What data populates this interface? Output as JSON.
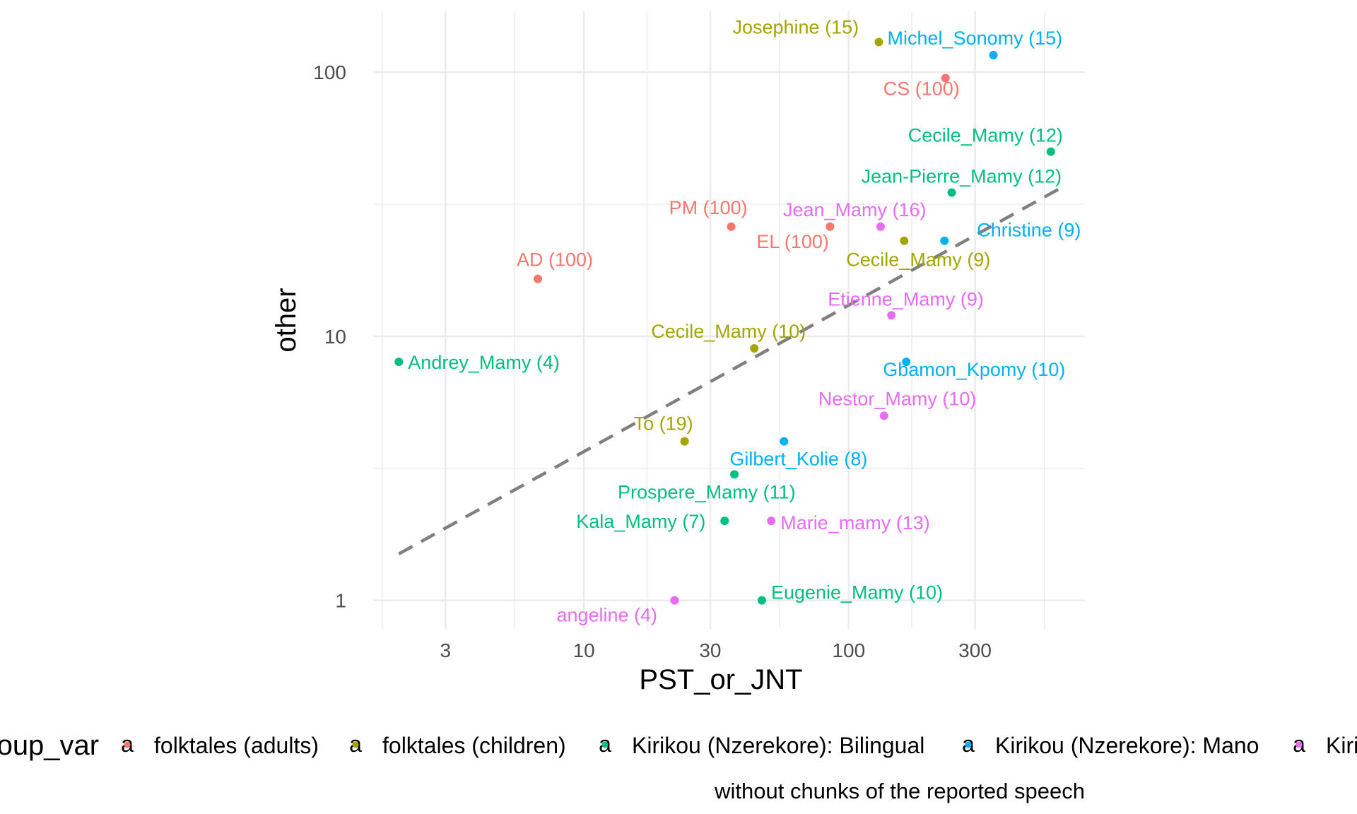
{
  "chart_data": {
    "type": "scatter",
    "xlabel": "PST_or_JNT",
    "ylabel": "other",
    "x_scale": "log10",
    "y_scale": "log10",
    "xlim": [
      1.6,
      780
    ],
    "ylim": [
      0.78,
      170
    ],
    "x_ticks": [
      3,
      10,
      30,
      100,
      300
    ],
    "x_tick_labels": [
      "3",
      "10",
      "30",
      "100",
      "300"
    ],
    "y_ticks": [
      1,
      10,
      100
    ],
    "y_tick_labels": [
      "1",
      "10",
      "100"
    ],
    "grid": true,
    "trend_line": {
      "style": "dashed",
      "color": "#808080",
      "from": [
        2,
        1.5
      ],
      "to": [
        650,
        37
      ]
    },
    "legend": {
      "title": "group_var",
      "position": "bottom",
      "entries": [
        {
          "label": "folktales (adults)",
          "color": "#F8766D"
        },
        {
          "label": "folktales (children)",
          "color": "#A3A500"
        },
        {
          "label": "Kirikou (Nzerekore): Bilingual",
          "color": "#00BF7D"
        },
        {
          "label": "Kirikou (Nzerekore): Mano",
          "color": "#00B0F6"
        },
        {
          "label": "Kirikou",
          "color": "#E76BF3"
        }
      ]
    },
    "caption": "without chunks of the reported speech",
    "points": [
      {
        "label": "CS (100)",
        "x": 232,
        "y": 95,
        "group": 0
      },
      {
        "label": "PM (100)",
        "x": 36,
        "y": 26,
        "group": 0
      },
      {
        "label": "EL (100)",
        "x": 85,
        "y": 26,
        "group": 0
      },
      {
        "label": "AD (100)",
        "x": 6.7,
        "y": 16.5,
        "group": 0
      },
      {
        "label": "Josephine (15)",
        "x": 130,
        "y": 130,
        "group": 1
      },
      {
        "label": "Cecile_Mamy (9)",
        "x": 162,
        "y": 23,
        "group": 1
      },
      {
        "label": "Cecile_Mamy (10)",
        "x": 44,
        "y": 9,
        "group": 1
      },
      {
        "label": "To (19)",
        "x": 24,
        "y": 4,
        "group": 1
      },
      {
        "label": "Cecile_Mamy (12)",
        "x": 580,
        "y": 50,
        "group": 2
      },
      {
        "label": "Jean-Pierre_Mamy (12)",
        "x": 245,
        "y": 35,
        "group": 2
      },
      {
        "label": "Andrey_Mamy (4)",
        "x": 2,
        "y": 8,
        "group": 2
      },
      {
        "label": "Prospere_Mamy (11)",
        "x": 37,
        "y": 3,
        "group": 2
      },
      {
        "label": "Kala_Mamy (7)",
        "x": 34,
        "y": 2,
        "group": 2
      },
      {
        "label": "Eugenie_Mamy (10)",
        "x": 47,
        "y": 1,
        "group": 2
      },
      {
        "label": "Michel_Sonomy (15)",
        "x": 352,
        "y": 116,
        "group": 3
      },
      {
        "label": "Christine (9)",
        "x": 230,
        "y": 23,
        "group": 3
      },
      {
        "label": "Gbamon_Kpomy (10)",
        "x": 165,
        "y": 8,
        "group": 3
      },
      {
        "label": "Gilbert_Kolie (8)",
        "x": 57,
        "y": 4,
        "group": 3
      },
      {
        "label": "Jean_Mamy (16)",
        "x": 132,
        "y": 26,
        "group": 4
      },
      {
        "label": "Etienne_Mamy (9)",
        "x": 145,
        "y": 12,
        "group": 4
      },
      {
        "label": "Nestor_Mamy (10)",
        "x": 136,
        "y": 5,
        "group": 4
      },
      {
        "label": "Marie_mamy (13)",
        "x": 51,
        "y": 2,
        "group": 4
      },
      {
        "label": "angeline (4)",
        "x": 22,
        "y": 1,
        "group": 4
      }
    ]
  }
}
